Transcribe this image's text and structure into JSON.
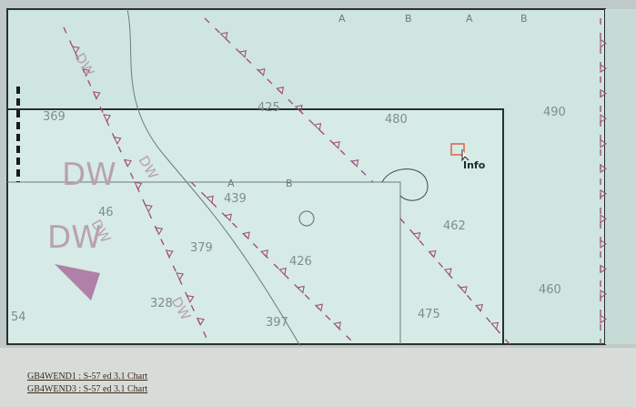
{
  "chart_view": {
    "soundings": [
      "425",
      "480",
      "490",
      "369",
      "439",
      "462",
      "379",
      "426",
      "328",
      "397",
      "475",
      "460",
      "46",
      "54"
    ],
    "area_labels": [
      "DW",
      "DW",
      "DW",
      "DW",
      "DW",
      "DW"
    ],
    "line_letters": [
      "A",
      "B",
      "A",
      "B",
      "A",
      "B"
    ],
    "cursor_label": "Info"
  },
  "status_panel": {
    "lines": [
      "GB4WEND1 : S-57 ed 3.1 Chart",
      "GB4WEND3 : S-57 ed 3.1 Chart"
    ]
  }
}
